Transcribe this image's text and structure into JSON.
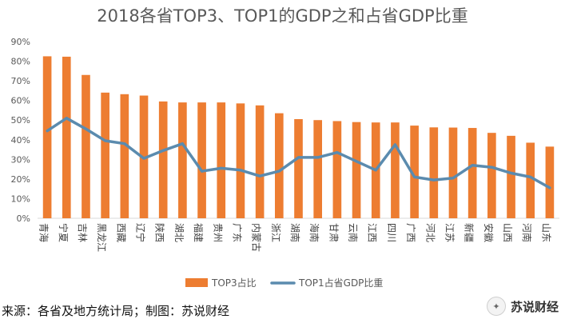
{
  "chart_data": {
    "type": "bar",
    "title": "2018各省TOP3、TOP1的GDP之和占省GDP比重",
    "xlabel": "",
    "ylabel": "",
    "ylim": [
      0,
      90
    ],
    "yticks": [
      "0%",
      "10%",
      "20%",
      "30%",
      "40%",
      "50%",
      "60%",
      "70%",
      "80%",
      "90%"
    ],
    "grid": false,
    "legend": "bottom",
    "categories": [
      "青海",
      "宁夏",
      "吉林",
      "黑龙江",
      "西藏",
      "辽宁",
      "陕西",
      "湖北",
      "福建",
      "贵州",
      "广东",
      "内蒙古",
      "浙江",
      "湖南",
      "海南",
      "甘肃",
      "云南",
      "江西",
      "四川",
      "广西",
      "河北",
      "江苏",
      "新疆",
      "安徽",
      "山西",
      "河南",
      "山东"
    ],
    "series": [
      {
        "name": "TOP3占比",
        "type": "bar",
        "color": "#ED7D31",
        "values": [
          82.5,
          82.3,
          73,
          64,
          63.2,
          62.5,
          59.5,
          59,
          59,
          59,
          58.5,
          57.5,
          53.5,
          50.5,
          50,
          49.5,
          49,
          48.8,
          48.8,
          47.2,
          46.3,
          46.2,
          46,
          43.5,
          42,
          38.5,
          36.5
        ]
      },
      {
        "name": "TOP1占省GDP比重",
        "type": "line",
        "color": "#5B8BAE",
        "values": [
          44.5,
          51,
          45.5,
          39.5,
          38,
          30.5,
          34.5,
          38,
          24,
          25.5,
          24.5,
          21.5,
          24,
          31,
          31,
          33.5,
          29,
          24.5,
          37.5,
          21,
          19.5,
          20.5,
          27,
          26,
          23,
          21,
          15.5
        ]
      }
    ]
  },
  "footer": {
    "source": "来源：各省及地方统计局；制图：苏说财经",
    "watermark": "苏说财经",
    "watermark_icon": "wechat-icon"
  }
}
